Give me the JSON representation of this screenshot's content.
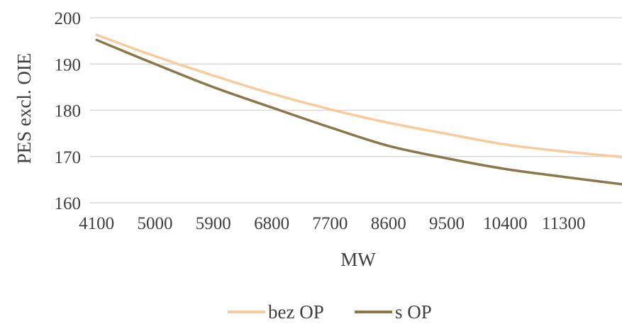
{
  "chart_data": {
    "type": "line",
    "title": "",
    "xlabel": "MW",
    "ylabel": "PES excl. OIE",
    "x_ticks": [
      "4100",
      "5000",
      "5900",
      "6800",
      "7700",
      "8600",
      "9500",
      "10400",
      "11300"
    ],
    "y_ticks": [
      "160",
      "170",
      "180",
      "190",
      "200"
    ],
    "xlim": [
      4000,
      12200
    ],
    "ylim": [
      160,
      200
    ],
    "grid": "horizontal",
    "legend": "bottom",
    "x": [
      4100,
      5000,
      5900,
      6800,
      7700,
      8600,
      9500,
      10400,
      11300,
      12200
    ],
    "series": [
      {
        "name": "bez OP",
        "color": "#f8cb9c",
        "values": [
          196.3,
          191.7,
          187.5,
          183.6,
          180.2,
          177.3,
          174.9,
          172.6,
          171.1,
          169.9
        ]
      },
      {
        "name": "s OP",
        "color": "#8b7749",
        "values": [
          195.2,
          190.0,
          185.0,
          180.6,
          176.3,
          172.3,
          169.6,
          167.3,
          165.6,
          164.0
        ]
      }
    ]
  }
}
